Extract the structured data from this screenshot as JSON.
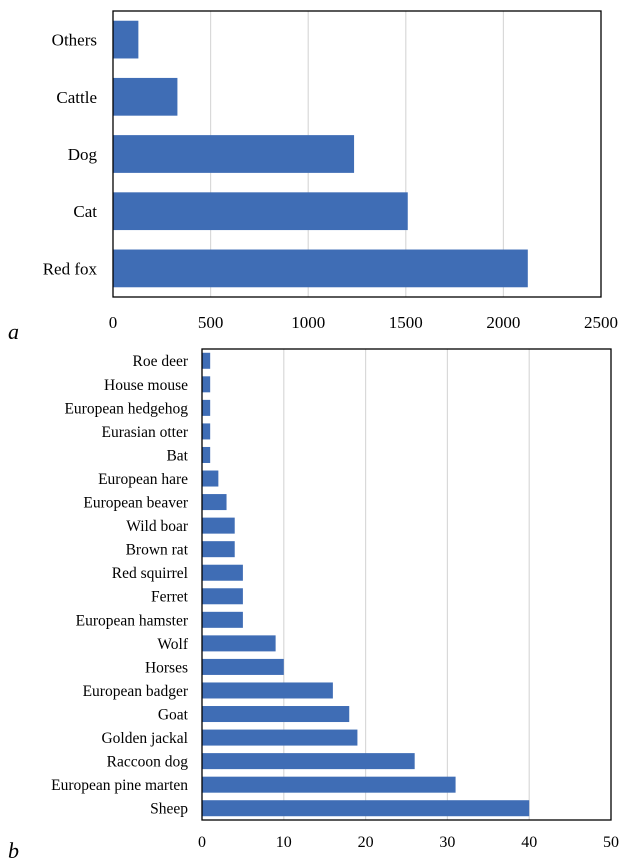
{
  "bar_color": "#3f6db5",
  "grid_color": "#d9d9d9",
  "chart_data": [
    {
      "type": "bar",
      "orientation": "horizontal",
      "panel_label": "a",
      "title": "",
      "xlabel": "",
      "ylabel": "",
      "categories": [
        "Others",
        "Cattle",
        "Dog",
        "Cat",
        "Red fox"
      ],
      "values": [
        130,
        330,
        1235,
        1510,
        2125
      ],
      "xlim": [
        0,
        2500
      ],
      "xticks": [
        0,
        500,
        1000,
        1500,
        2000,
        2500
      ],
      "grid": "vertical"
    },
    {
      "type": "bar",
      "orientation": "horizontal",
      "panel_label": "b",
      "title": "",
      "xlabel": "",
      "ylabel": "",
      "categories": [
        "Roe deer",
        "House mouse",
        "European hedgehog",
        "Eurasian otter",
        "Bat",
        "European hare",
        "European beaver",
        "Wild boar",
        "Brown rat",
        "Red squirrel",
        "Ferret",
        "European hamster",
        "Wolf",
        "Horses",
        "European badger",
        "Goat",
        "Golden jackal",
        "Raccoon dog",
        "European pine marten",
        "Sheep"
      ],
      "values": [
        1,
        1,
        1,
        1,
        1,
        2,
        3,
        4,
        4,
        5,
        5,
        5,
        9,
        10,
        16,
        18,
        19,
        26,
        31,
        40
      ],
      "xlim": [
        0,
        50
      ],
      "xticks": [
        0,
        10,
        20,
        30,
        40,
        50
      ],
      "grid": "vertical"
    }
  ]
}
